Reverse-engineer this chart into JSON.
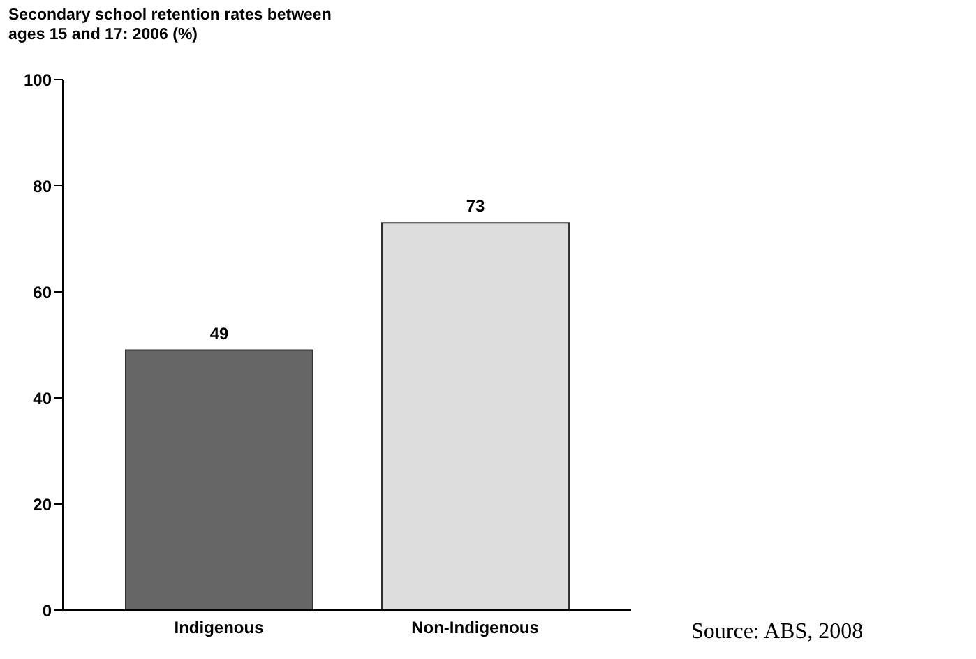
{
  "chart_data": {
    "type": "bar",
    "title": "Secondary school retention rates between ages 15 and 17: 2006 (%)",
    "categories": [
      "Indigenous",
      "Non-Indigenous"
    ],
    "values": [
      49,
      73
    ],
    "colors": [
      "#666666",
      "#dddddd"
    ],
    "ylim": [
      0,
      100
    ],
    "yticks": [
      0,
      20,
      40,
      60,
      80,
      100
    ],
    "data_labels": true,
    "annotations": [
      "Source: ABS, 2008"
    ]
  }
}
